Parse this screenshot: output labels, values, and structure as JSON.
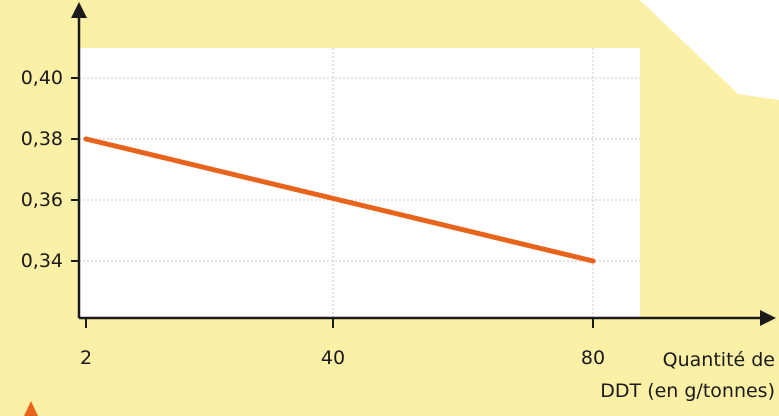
{
  "chart_data": {
    "type": "line",
    "title": "",
    "xlabel_lines": [
      "Quantité de",
      "DDT (en g/tonnes)"
    ],
    "ylabel": "",
    "x_ticks": [
      2,
      40,
      80
    ],
    "x_tick_labels": [
      "2",
      "40",
      "80"
    ],
    "y_ticks": [
      0.34,
      0.36,
      0.38,
      0.4
    ],
    "y_tick_labels": [
      "0,34",
      "0,36",
      "0,38",
      "0,40"
    ],
    "xlim": [
      2,
      80
    ],
    "ylim": [
      0.32,
      0.4
    ],
    "grid": true,
    "series": [
      {
        "x": [
          2,
          80
        ],
        "y": [
          0.38,
          0.34
        ],
        "color": "#e8641c"
      }
    ]
  },
  "colors": {
    "background": "#fcefa6",
    "plot_area": "#ffffff",
    "line": "#e8641c",
    "axis": "#1a1a1a",
    "grid": "#c8c8c8"
  }
}
